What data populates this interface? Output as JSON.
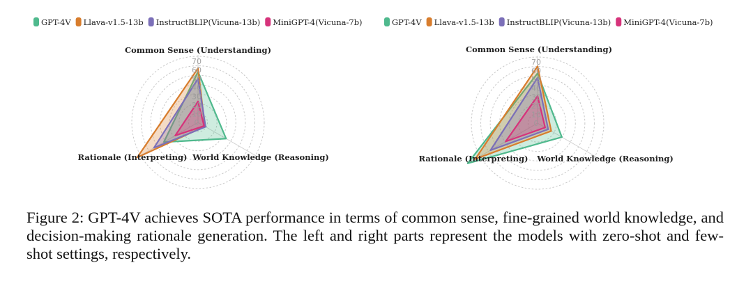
{
  "caption": {
    "text": "Figure 2: GPT-4V achieves SOTA performance in terms of common sense, fine-grained world knowledge, and decision-making rationale generation. The left and right parts represent the models with zero-shot and few-shot settings, respectively."
  },
  "chart_data": [
    {
      "type": "radar",
      "setting": "zero-shot",
      "axes": [
        "Common Sense (Understanding)",
        "World Knowledge (Reasoning)",
        "Rationale (Interpreting)"
      ],
      "ticks": [
        0,
        10,
        20,
        30,
        40,
        50,
        60,
        70
      ],
      "rlim": [
        0,
        70
      ],
      "grid": true,
      "legend_position": "top",
      "series": [
        {
          "name": "GPT-4V",
          "color": "#4fb98d",
          "values": [
            58,
            37,
            45
          ]
        },
        {
          "name": "Llava-v1.5-13b",
          "color": "#d87d2d",
          "values": [
            62,
            9,
            80
          ]
        },
        {
          "name": "InstructBLIP(Vicuna-13b)",
          "color": "#7b6fb8",
          "values": [
            50,
            10,
            58
          ]
        },
        {
          "name": "MiniGPT-4(Vicuna-7b)",
          "color": "#d6337b",
          "values": [
            24,
            8,
            30
          ]
        }
      ]
    },
    {
      "type": "radar",
      "setting": "few-shot",
      "axes": [
        "Common Sense (Understanding)",
        "World Knowledge (Reasoning)",
        "Rationale (Interpreting)"
      ],
      "ticks": [
        0,
        10,
        20,
        30,
        40,
        50,
        60,
        70
      ],
      "rlim": [
        0,
        70
      ],
      "grid": true,
      "legend_position": "top",
      "series": [
        {
          "name": "GPT-4V",
          "color": "#4fb98d",
          "values": [
            57,
            32,
            92
          ]
        },
        {
          "name": "Llava-v1.5-13b",
          "color": "#d87d2d",
          "values": [
            65,
            18,
            82
          ]
        },
        {
          "name": "InstructBLIP(Vicuna-13b)",
          "color": "#7b6fb8",
          "values": [
            52,
            14,
            62
          ]
        },
        {
          "name": "MiniGPT-4(Vicuna-7b)",
          "color": "#d6337b",
          "values": [
            31,
            10,
            42
          ]
        }
      ]
    }
  ]
}
